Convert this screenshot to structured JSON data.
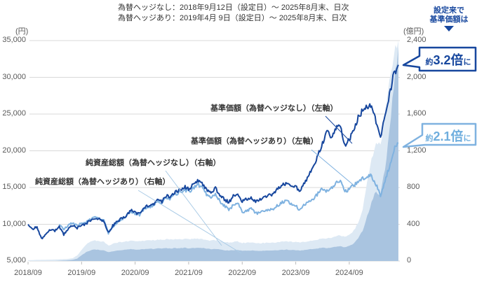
{
  "header": {
    "line1": "為替ヘッジなし：2018年9月12日（設定日）～ 2025年8月末、日次",
    "line2": "為替ヘッジあり：2019年4月 9日（設定日）～ 2025年8月末、日次"
  },
  "annotation": {
    "headline_line1": "設定来で",
    "headline_line2": "基準価額は",
    "bubble_no_hedge": {
      "prefix": "約",
      "value": "3.2倍",
      "suffix": "に",
      "color": "#17479e"
    },
    "bubble_hedged": {
      "prefix": "約",
      "value": "2.1倍",
      "suffix": "に",
      "color": "#7fb2e0"
    }
  },
  "series_labels": {
    "nav_no_hedge": "基準価額（為替ヘッジなし）（左軸）",
    "nav_hedged": "基準価額（為替ヘッジあり）（左軸）",
    "assets_no_hedge": "純資産総額（為替ヘッジなし）（右軸）",
    "assets_hedged": "純資産総額（為替ヘッジあり）（右軸）"
  },
  "chart_data": {
    "type": "line",
    "frequency": "monthly",
    "x_start": "2018/09",
    "x_end": "2025/08",
    "x_tick_labels": [
      "2018/09",
      "2019/09",
      "2020/09",
      "2021/09",
      "2022/09",
      "2023/09",
      "2024/09"
    ],
    "left_axis": {
      "unit": "(円)",
      "min": 5000,
      "max": 35000,
      "tick_labels": [
        "35,000",
        "30,000",
        "25,000",
        "20,000",
        "15,000",
        "10,000",
        "5,000"
      ],
      "tick_values": [
        35000,
        30000,
        25000,
        20000,
        15000,
        10000,
        5000
      ]
    },
    "right_axis": {
      "unit": "(億円)",
      "min": 0,
      "max": 2400,
      "tick_labels": [
        "2,400",
        "2,000",
        "1,600",
        "1,200",
        "800",
        "400",
        "0"
      ],
      "tick_values": [
        2400,
        2000,
        1600,
        1200,
        800,
        400,
        0
      ]
    },
    "grid": true,
    "colors": {
      "nav_no_hedge": "#17479e",
      "nav_hedged": "#7fb2e0",
      "assets_no_hedge": "#dde9f4",
      "assets_hedged": "#a9c4e0",
      "gridline": "#d9d9d9"
    },
    "series": [
      {
        "id": "assets_no_hedge",
        "name": "純資産総額（為替ヘッジなし）",
        "axis": "right",
        "style": "area",
        "values": [
          8,
          10,
          12,
          13,
          14,
          15,
          16,
          18,
          20,
          24,
          30,
          60,
          120,
          180,
          210,
          225,
          215,
          208,
          168,
          186,
          200,
          207,
          212,
          220,
          216,
          214,
          221,
          226,
          227,
          232,
          229,
          235,
          233,
          236,
          238,
          241,
          236,
          239,
          244,
          240,
          228,
          223,
          226,
          215,
          208,
          201,
          207,
          211,
          197,
          198,
          202,
          193,
          195,
          197,
          199,
          200,
          206,
          212,
          215,
          210,
          207,
          201,
          209,
          215,
          223,
          236,
          251,
          244,
          254,
          269,
          279,
          258,
          280,
          330,
          420,
          560,
          850,
          1100,
          1300,
          1250,
          1600,
          1950,
          2250,
          2400
        ]
      },
      {
        "id": "assets_hedged",
        "name": "純資産総額（為替ヘッジあり）",
        "axis": "right",
        "style": "area",
        "values": [
          0,
          0,
          0,
          0,
          0,
          0,
          0,
          3,
          5,
          8,
          13,
          26,
          62,
          96,
          116,
          126,
          121,
          117,
          95,
          106,
          114,
          120,
          123,
          129,
          126,
          125,
          129,
          133,
          133,
          137,
          135,
          139,
          137,
          140,
          141,
          144,
          140,
          142,
          146,
          143,
          134,
          130,
          132,
          125,
          119,
          114,
          118,
          121,
          112,
          113,
          116,
          110,
          111,
          112,
          113,
          114,
          118,
          122,
          124,
          120,
          118,
          114,
          120,
          126,
          131,
          138,
          146,
          142,
          148,
          156,
          162,
          150,
          162,
          190,
          245,
          330,
          490,
          640,
          760,
          720,
          1000,
          1400,
          1900,
          2330
        ]
      },
      {
        "id": "nav_hedged",
        "name": "基準価額（為替ヘッジあり）",
        "axis": "left",
        "style": "line",
        "values": [
          null,
          null,
          null,
          null,
          null,
          null,
          null,
          10000,
          9300,
          9800,
          10200,
          9800,
          10100,
          10300,
          10700,
          10900,
          10900,
          10500,
          8800,
          9700,
          10300,
          10700,
          11100,
          11800,
          11500,
          11300,
          12100,
          12400,
          12500,
          13100,
          12900,
          13600,
          13500,
          14100,
          14300,
          14700,
          14400,
          14900,
          15400,
          15100,
          14100,
          13700,
          14200,
          13100,
          12500,
          12000,
          12600,
          13000,
          11700,
          11800,
          12100,
          11500,
          11600,
          11900,
          12000,
          12100,
          12600,
          13000,
          13200,
          12800,
          12500,
          11900,
          12700,
          13100,
          13500,
          14200,
          14900,
          14500,
          15000,
          15600,
          16000,
          14400,
          14800,
          15300,
          15900,
          16200,
          16500,
          16600,
          15400,
          13900,
          16000,
          17800,
          20200,
          21000
        ]
      },
      {
        "id": "nav_no_hedge",
        "name": "基準価額（為替ヘッジなし）",
        "axis": "left",
        "style": "line",
        "values": [
          10000,
          9300,
          9700,
          8000,
          8700,
          9300,
          9100,
          9700,
          8600,
          9300,
          9900,
          9500,
          9800,
          10100,
          10500,
          10800,
          10800,
          10400,
          8900,
          9800,
          10400,
          10800,
          11200,
          11900,
          11600,
          11400,
          12200,
          12600,
          12700,
          13300,
          13100,
          13900,
          13800,
          14400,
          14700,
          15100,
          14800,
          15400,
          15900,
          15600,
          14700,
          14300,
          14900,
          13900,
          13400,
          13000,
          13800,
          14300,
          13100,
          13400,
          13700,
          13100,
          13300,
          13700,
          13900,
          14100,
          14900,
          15400,
          15600,
          15200,
          15100,
          14500,
          15600,
          16900,
          18000,
          19500,
          21000,
          22500,
          22000,
          23000,
          23500,
          20800,
          21500,
          23000,
          24500,
          25500,
          26000,
          26300,
          24000,
          21700,
          25000,
          27500,
          30500,
          31700
        ]
      }
    ]
  }
}
